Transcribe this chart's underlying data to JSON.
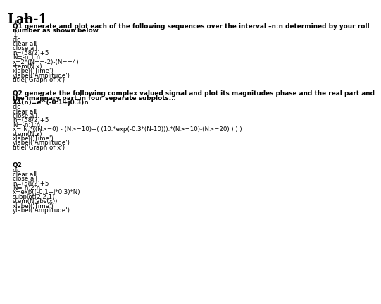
{
  "title": "Lab-1",
  "bg_color": "#ffffff",
  "text_color": "#000000",
  "title_fontsize": 13,
  "body_fontsize": 6.2,
  "bold_fontsize": 6.4,
  "lines": [
    {
      "text": "Q1 generate and plot each of the following sequences over the interval –n:n determined by your roll",
      "bold": true
    },
    {
      "text": "number as shown below",
      "bold": true
    },
    {
      "text": "1)",
      "bold": false
    },
    {
      "text": "clc",
      "bold": false
    },
    {
      "text": "clear all",
      "bold": false
    },
    {
      "text": "close all",
      "bold": false
    },
    {
      "text": "n=(58/2)+5",
      "bold": false
    },
    {
      "text": "N=-n:1:n",
      "bold": false
    },
    {
      "text": "x=2*(N==-2)-(N==4)",
      "bold": false
    },
    {
      "text": "stem(N,x)",
      "bold": false
    },
    {
      "text": "xlabel('Time')",
      "bold": false
    },
    {
      "text": "ylabel('Amplitude')",
      "bold": false
    },
    {
      "text": "title('Graph of x')",
      "bold": false
    },
    {
      "text": "",
      "bold": false
    },
    {
      "text": "",
      "bold": false
    },
    {
      "text": "Q2 generate the following complex valued signal and plot its magnitudes phase and the real part and",
      "bold": true
    },
    {
      "text": "the imajinary part in four separate subplots...",
      "bold": true
    },
    {
      "text": "X4(n)=e^(-0.1+j0.3)n",
      "bold": true
    },
    {
      "text": "clc",
      "bold": false
    },
    {
      "text": "clear all",
      "bold": false
    },
    {
      "text": "close all",
      "bold": false
    },
    {
      "text": "n=(58/2)+5",
      "bold": false
    },
    {
      "text": "N=-n:1:n",
      "bold": false
    },
    {
      "text": "x= N.*((N>=0) - (N>=10)+( (10.*exp(-0.3*(N-10))).*(N>=10)-(N>=20) ) ) )",
      "bold": false
    },
    {
      "text": "stem(N,x)",
      "bold": false
    },
    {
      "text": "xlabel('Time')",
      "bold": false
    },
    {
      "text": "ylabel('Amplitude')",
      "bold": false
    },
    {
      "text": "title('Graph of x')",
      "bold": false
    },
    {
      "text": "",
      "bold": false
    },
    {
      "text": "",
      "bold": false
    },
    {
      "text": "",
      "bold": false
    },
    {
      "text": "Q2",
      "bold": true
    },
    {
      "text": "clc",
      "bold": false
    },
    {
      "text": "clear all",
      "bold": false
    },
    {
      "text": "close all",
      "bold": false
    },
    {
      "text": "n=(58/2)+5",
      "bold": false
    },
    {
      "text": "N=-n:2:n",
      "bold": false
    },
    {
      "text": "x=exp((-0.1+j*0.3)*N)",
      "bold": false
    },
    {
      "text": "subplot(2,2,1)",
      "bold": false
    },
    {
      "text": "stem(N,abs(x))",
      "bold": false
    },
    {
      "text": "xlabel('Time')",
      "bold": false
    },
    {
      "text": "ylabel('Amplitude')",
      "bold": false
    },
    {
      "text": " ",
      "bold": false
    }
  ]
}
